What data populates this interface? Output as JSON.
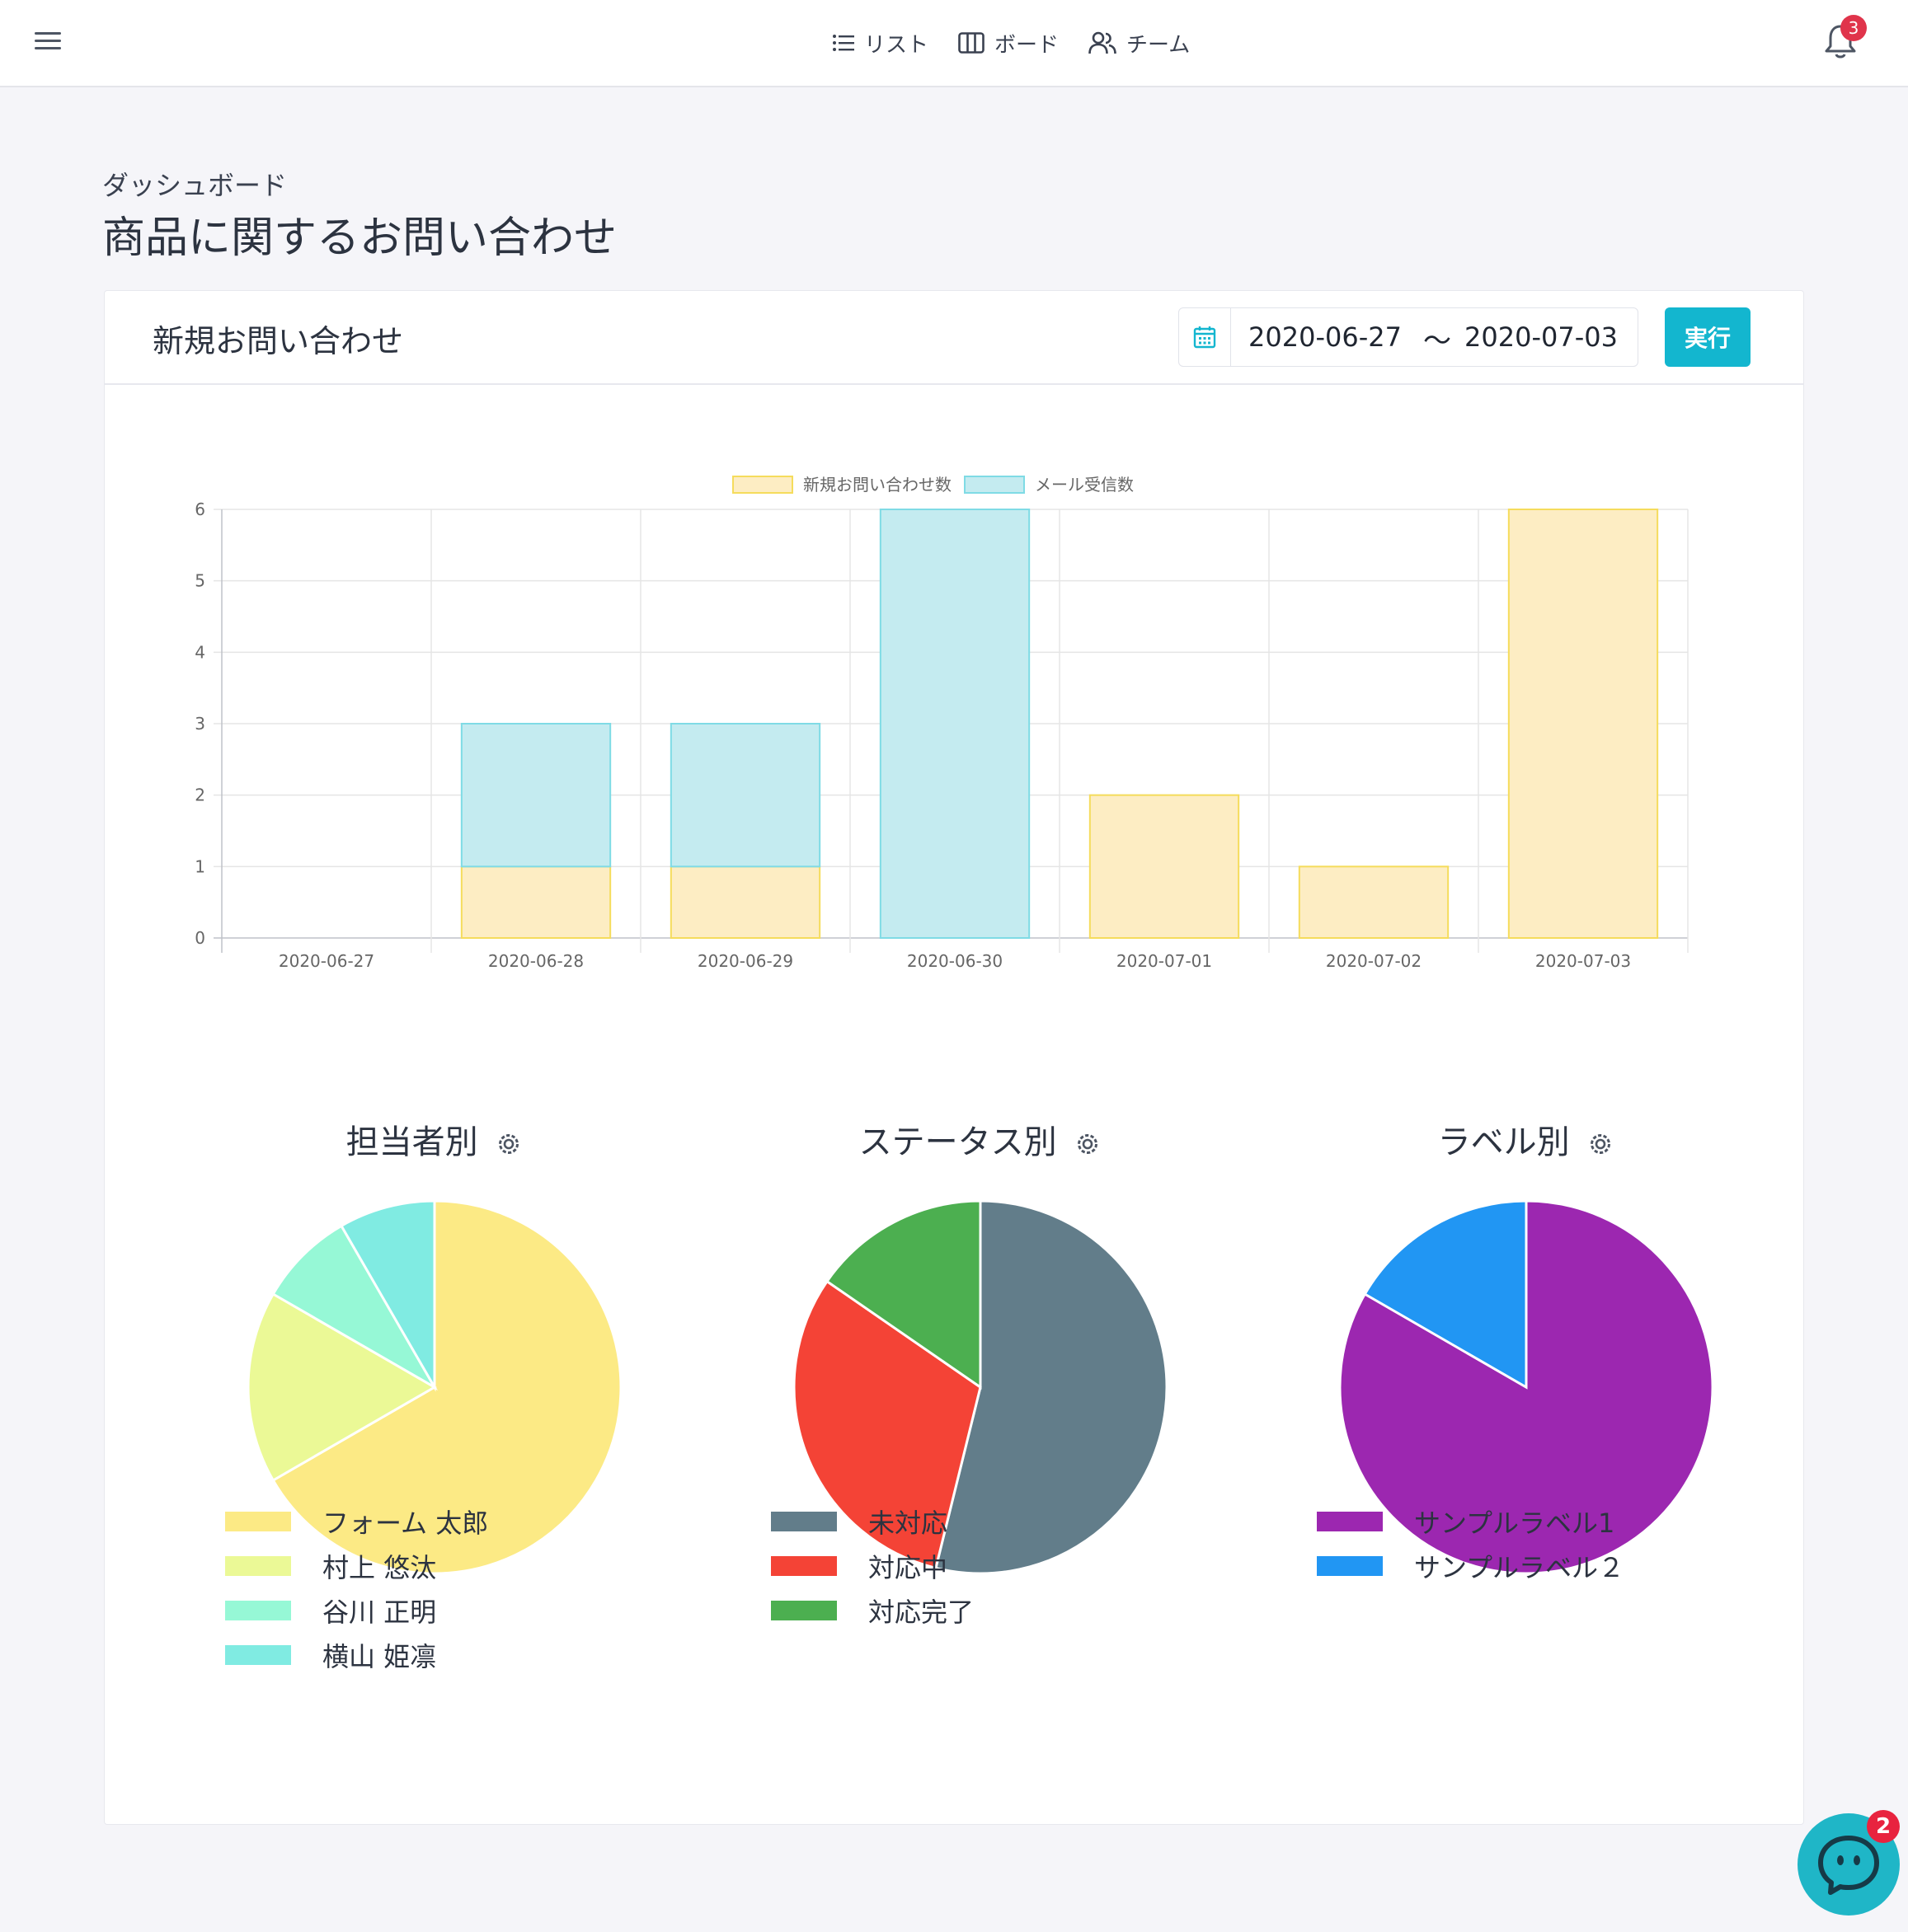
{
  "nav": {
    "items": [
      {
        "label": "リスト",
        "icon": "list-icon"
      },
      {
        "label": "ボード",
        "icon": "board-icon"
      },
      {
        "label": "チーム",
        "icon": "team-icon"
      }
    ],
    "notification_count": "3"
  },
  "page": {
    "breadcrumb": "ダッシュボード",
    "title": "商品に関するお問い合わせ"
  },
  "card": {
    "title": "新規お問い合わせ",
    "date_start": "2020-06-27",
    "date_separator": "〜",
    "date_end": "2020-07-03",
    "run_label": "実行"
  },
  "chat": {
    "badge": "2"
  },
  "chart_data": [
    {
      "type": "bar",
      "stacked": true,
      "categories": [
        "2020-06-27",
        "2020-06-28",
        "2020-06-29",
        "2020-06-30",
        "2020-07-01",
        "2020-07-02",
        "2020-07-03"
      ],
      "series": [
        {
          "name": "新規お問い合わせ数",
          "values": [
            0,
            1,
            1,
            0,
            2,
            1,
            6
          ],
          "fill": "#fdedc3",
          "stroke": "#f5dc5c"
        },
        {
          "name": "メール受信数",
          "values": [
            0,
            2,
            2,
            6,
            0,
            0,
            0
          ],
          "fill": "#c4ebf0",
          "stroke": "#7fdbe5"
        }
      ],
      "ylim": [
        0,
        6
      ],
      "yticks": [
        "0",
        "1",
        "2",
        "3",
        "4",
        "5",
        "6"
      ],
      "legend": "top",
      "grid": true
    },
    {
      "type": "pie",
      "title": "担当者別",
      "labels": [
        "フォーム 太郎",
        "村上 悠汰",
        "谷川 正明",
        "横山 姫凛"
      ],
      "values": [
        8,
        2,
        1,
        1
      ],
      "colors": [
        "#fcea85",
        "#ebf996",
        "#96f8d6",
        "#80ebe2"
      ]
    },
    {
      "type": "pie",
      "title": "ステータス別",
      "labels": [
        "未対応",
        "対応中",
        "対応完了"
      ],
      "values": [
        7,
        4,
        2
      ],
      "colors": [
        "#627d8a",
        "#f44336",
        "#4caf50"
      ]
    },
    {
      "type": "pie",
      "title": "ラベル別",
      "labels": [
        "サンプルラベル1",
        "サンプルラベル２"
      ],
      "values": [
        5,
        1
      ],
      "colors": [
        "#9c27b0",
        "#2196f3"
      ]
    }
  ]
}
